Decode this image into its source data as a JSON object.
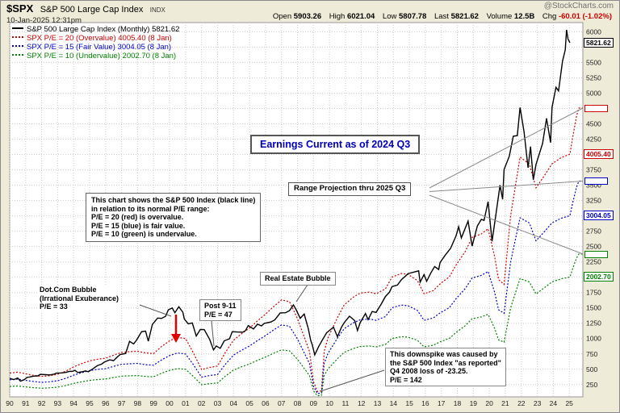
{
  "header": {
    "symbol": "$SPX",
    "name": "S&P 500 Large Cap Index",
    "exchange": "INDX",
    "datetime": "10-Jan-2025 12:31pm",
    "source": "@StockCharts.com",
    "quote": {
      "open_label": "Open",
      "open_value": "5903.26",
      "high_label": "High",
      "high_value": "6021.04",
      "low_label": "Low",
      "low_value": "5807.78",
      "last_label": "Last",
      "last_value": "5821.62",
      "volume_label": "Volume",
      "volume_value": "12.5B",
      "chg_label": "Chg",
      "chg_value": "-60.01 (-1.02%)"
    }
  },
  "legend": [
    {
      "label": "S&P 500 Large Cap Index (Monthly) 5821.62",
      "color": "#000000",
      "style": "solid"
    },
    {
      "label": "SPX P/E = 20 (Overvalue) 4005.40 (8 Jan)",
      "color": "#CC0000",
      "style": "dotted"
    },
    {
      "label": "SPX P/E = 15 (Fair Value) 3004.05 (8 Jan)",
      "color": "#0000CC",
      "style": "dotted"
    },
    {
      "label": "SPX P/E = 10 (Undervalue) 2002.70 (8 Jan)",
      "color": "#008000",
      "style": "dotted"
    }
  ],
  "annotations": {
    "earnings_note": "Earnings Current as of 2024 Q3",
    "range_projection": "Range Projection thru 2025 Q3",
    "explanation": "This chart shows the S&P 500 Index (black line)\nin relation to its normal P/E range:\nP/E = 20 (red) is overvalue.\nP/E = 15 (blue) is fair value.\nP/E = 10 (green) is undervalue.",
    "dotcom": "Dot.Com Bubble\n(Irrational Exuberance)\nP/E = 33",
    "post911": "Post 9-11\nP/E = 47",
    "real_estate": "Real Estate Bubble",
    "downspike": "This downspike was caused by\nthe S&P 500 Index \"as reported\"\nQ4 2008 loss of -23.25.\nP/E = 142"
  },
  "chart_data": {
    "type": "line",
    "title": "S&P 500 Large Cap Index (Monthly) with P/E valuation lines",
    "x_axis": {
      "start_year": 1990,
      "end_year": 2025.85,
      "tick_labels": [
        "90",
        "91",
        "92",
        "93",
        "94",
        "95",
        "96",
        "97",
        "98",
        "99",
        "00",
        "01",
        "02",
        "03",
        "04",
        "05",
        "06",
        "07",
        "08",
        "09",
        "10",
        "11",
        "12",
        "13",
        "14",
        "15",
        "16",
        "17",
        "18",
        "19",
        "20",
        "21",
        "22",
        "23",
        "24",
        "25"
      ]
    },
    "y_axis": {
      "min": 50,
      "max": 6150,
      "tick_min": 250,
      "tick_max": 6000,
      "tick_step": 250,
      "hidden_ticks": [
        2000,
        3000,
        4000,
        4750,
        5750
      ],
      "grid": true
    },
    "series": [
      {
        "name": "S&P 500 Large Cap Index (Monthly)",
        "color": "#000000",
        "style": "solid",
        "last_value": 5821.62,
        "points": [
          [
            1990.0,
            353
          ],
          [
            1990.25,
            331
          ],
          [
            1990.5,
            358
          ],
          [
            1990.67,
            306
          ],
          [
            1990.92,
            330
          ],
          [
            1991.08,
            367
          ],
          [
            1991.25,
            375
          ],
          [
            1991.5,
            388
          ],
          [
            1991.75,
            392
          ],
          [
            1991.92,
            417
          ],
          [
            1992.25,
            412
          ],
          [
            1992.5,
            408
          ],
          [
            1992.75,
            418
          ],
          [
            1992.92,
            436
          ],
          [
            1993.25,
            440
          ],
          [
            1993.5,
            448
          ],
          [
            1993.75,
            467
          ],
          [
            1993.92,
            466
          ],
          [
            1994.08,
            482
          ],
          [
            1994.25,
            447
          ],
          [
            1994.5,
            458
          ],
          [
            1994.75,
            472
          ],
          [
            1994.92,
            459
          ],
          [
            1995.25,
            515
          ],
          [
            1995.5,
            562
          ],
          [
            1995.75,
            584
          ],
          [
            1995.92,
            616
          ],
          [
            1996.25,
            654
          ],
          [
            1996.5,
            640
          ],
          [
            1996.75,
            705
          ],
          [
            1996.92,
            741
          ],
          [
            1997.25,
            757
          ],
          [
            1997.5,
            954
          ],
          [
            1997.75,
            914
          ],
          [
            1997.92,
            970
          ],
          [
            1998.25,
            1112
          ],
          [
            1998.5,
            1121
          ],
          [
            1998.67,
            957
          ],
          [
            1998.92,
            1229
          ],
          [
            1999.25,
            1335
          ],
          [
            1999.5,
            1329
          ],
          [
            1999.75,
            1363
          ],
          [
            1999.92,
            1469
          ],
          [
            2000.17,
            1499
          ],
          [
            2000.33,
            1421
          ],
          [
            2000.58,
            1518
          ],
          [
            2000.83,
            1429
          ],
          [
            2000.92,
            1320
          ],
          [
            2001.17,
            1240
          ],
          [
            2001.42,
            1255
          ],
          [
            2001.67,
            1041
          ],
          [
            2001.92,
            1148
          ],
          [
            2002.17,
            1147
          ],
          [
            2002.5,
            990
          ],
          [
            2002.75,
            815
          ],
          [
            2002.92,
            880
          ],
          [
            2003.17,
            841
          ],
          [
            2003.42,
            964
          ],
          [
            2003.75,
            996
          ],
          [
            2003.92,
            1112
          ],
          [
            2004.25,
            1107
          ],
          [
            2004.58,
            1105
          ],
          [
            2004.75,
            1130
          ],
          [
            2004.92,
            1212
          ],
          [
            2005.25,
            1157
          ],
          [
            2005.5,
            1234
          ],
          [
            2005.75,
            1207
          ],
          [
            2005.92,
            1248
          ],
          [
            2006.33,
            1270
          ],
          [
            2006.58,
            1304
          ],
          [
            2006.92,
            1418
          ],
          [
            2007.25,
            1421
          ],
          [
            2007.5,
            1455
          ],
          [
            2007.75,
            1549
          ],
          [
            2007.92,
            1468
          ],
          [
            2008.17,
            1331
          ],
          [
            2008.42,
            1400
          ],
          [
            2008.67,
            1166
          ],
          [
            2008.83,
            969
          ],
          [
            2008.92,
            903
          ],
          [
            2009.08,
            735
          ],
          [
            2009.33,
            873
          ],
          [
            2009.58,
            987
          ],
          [
            2009.83,
            1096
          ],
          [
            2009.92,
            1115
          ],
          [
            2010.25,
            1187
          ],
          [
            2010.5,
            1031
          ],
          [
            2010.75,
            1183
          ],
          [
            2010.92,
            1258
          ],
          [
            2011.25,
            1364
          ],
          [
            2011.58,
            1292
          ],
          [
            2011.75,
            1131
          ],
          [
            2011.92,
            1258
          ],
          [
            2012.25,
            1408
          ],
          [
            2012.42,
            1310
          ],
          [
            2012.67,
            1441
          ],
          [
            2012.92,
            1426
          ],
          [
            2013.25,
            1569
          ],
          [
            2013.5,
            1686
          ],
          [
            2013.75,
            1757
          ],
          [
            2013.92,
            1848
          ],
          [
            2014.25,
            1872
          ],
          [
            2014.5,
            1960
          ],
          [
            2014.75,
            2018
          ],
          [
            2014.92,
            2059
          ],
          [
            2015.33,
            2086
          ],
          [
            2015.58,
            2104
          ],
          [
            2015.67,
            1920
          ],
          [
            2015.92,
            2044
          ],
          [
            2016.08,
            1932
          ],
          [
            2016.33,
            2065
          ],
          [
            2016.58,
            2174
          ],
          [
            2016.83,
            2126
          ],
          [
            2016.92,
            2239
          ],
          [
            2017.25,
            2363
          ],
          [
            2017.58,
            2471
          ],
          [
            2017.92,
            2674
          ],
          [
            2018.08,
            2824
          ],
          [
            2018.25,
            2641
          ],
          [
            2018.67,
            2914
          ],
          [
            2018.92,
            2507
          ],
          [
            2019.25,
            2834
          ],
          [
            2019.5,
            2942
          ],
          [
            2019.67,
            2926
          ],
          [
            2019.92,
            3231
          ],
          [
            2020.17,
            2585
          ],
          [
            2020.42,
            3044
          ],
          [
            2020.67,
            3500
          ],
          [
            2020.83,
            3270
          ],
          [
            2020.92,
            3756
          ],
          [
            2021.25,
            3973
          ],
          [
            2021.5,
            4298
          ],
          [
            2021.75,
            4308
          ],
          [
            2021.92,
            4766
          ],
          [
            2022.17,
            4374
          ],
          [
            2022.42,
            3785
          ],
          [
            2022.58,
            4130
          ],
          [
            2022.75,
            3586
          ],
          [
            2022.92,
            3840
          ],
          [
            2023.08,
            3970
          ],
          [
            2023.33,
            4180
          ],
          [
            2023.58,
            4589
          ],
          [
            2023.83,
            4194
          ],
          [
            2023.92,
            4770
          ],
          [
            2024.17,
            5096
          ],
          [
            2024.33,
            5035
          ],
          [
            2024.58,
            5522
          ],
          [
            2024.75,
            5705
          ],
          [
            2024.83,
            6032
          ],
          [
            2024.92,
            5882
          ],
          [
            2025.04,
            5821.62
          ]
        ]
      },
      {
        "name": "SPX P/E = 20 (Overvalue)",
        "color": "#CC0000",
        "style": "dotted",
        "pe_multiple": 20,
        "last_value": 4005.4
      },
      {
        "name": "SPX P/E = 15 (Fair Value)",
        "color": "#0000CC",
        "style": "dotted",
        "pe_multiple": 15,
        "last_value": 3004.05
      },
      {
        "name": "SPX P/E = 10 (Undervalue)",
        "color": "#008000",
        "style": "dotted",
        "pe_multiple": 10,
        "last_value": 2002.7
      }
    ],
    "earnings_points": [
      [
        1990.0,
        21.9
      ],
      [
        1990.5,
        22.6
      ],
      [
        1991.0,
        21.3
      ],
      [
        1991.5,
        20.0
      ],
      [
        1992.0,
        19.1
      ],
      [
        1992.5,
        19.7
      ],
      [
        1993.0,
        20.9
      ],
      [
        1993.5,
        23.4
      ],
      [
        1994.0,
        26.9
      ],
      [
        1994.5,
        29.6
      ],
      [
        1995.0,
        31.8
      ],
      [
        1995.5,
        33.2
      ],
      [
        1996.0,
        34.0
      ],
      [
        1996.5,
        36.5
      ],
      [
        1997.0,
        38.7
      ],
      [
        1997.5,
        39.3
      ],
      [
        1998.0,
        39.7
      ],
      [
        1998.5,
        38.3
      ],
      [
        1999.0,
        37.7
      ],
      [
        1999.5,
        43.5
      ],
      [
        2000.0,
        48.2
      ],
      [
        2000.5,
        51.0
      ],
      [
        2001.0,
        50.0
      ],
      [
        2001.5,
        38.0
      ],
      [
        2002.0,
        24.7
      ],
      [
        2002.5,
        26.5
      ],
      [
        2003.0,
        27.6
      ],
      [
        2003.5,
        39.0
      ],
      [
        2004.0,
        48.7
      ],
      [
        2004.5,
        54.0
      ],
      [
        2005.0,
        58.6
      ],
      [
        2005.5,
        64.5
      ],
      [
        2006.0,
        69.9
      ],
      [
        2006.5,
        76.0
      ],
      [
        2007.0,
        81.5
      ],
      [
        2007.5,
        80.0
      ],
      [
        2008.0,
        66.2
      ],
      [
        2008.42,
        51.4
      ],
      [
        2008.75,
        39.7
      ],
      [
        2009.0,
        14.9
      ],
      [
        2009.25,
        6.9
      ],
      [
        2009.5,
        7.5
      ],
      [
        2009.67,
        39.6
      ],
      [
        2009.92,
        51.0
      ],
      [
        2010.5,
        67.1
      ],
      [
        2010.92,
        77.4
      ],
      [
        2011.5,
        83.9
      ],
      [
        2011.92,
        87.0
      ],
      [
        2012.5,
        87.9
      ],
      [
        2012.92,
        86.5
      ],
      [
        2013.5,
        90.5
      ],
      [
        2013.92,
        100.2
      ],
      [
        2014.5,
        103.1
      ],
      [
        2014.92,
        102.3
      ],
      [
        2015.5,
        97.3
      ],
      [
        2015.92,
        86.5
      ],
      [
        2016.5,
        89.1
      ],
      [
        2016.92,
        94.6
      ],
      [
        2017.5,
        100.3
      ],
      [
        2017.92,
        109.9
      ],
      [
        2018.5,
        121.1
      ],
      [
        2018.92,
        132.4
      ],
      [
        2019.5,
        135.3
      ],
      [
        2019.92,
        139.5
      ],
      [
        2020.33,
        116.9
      ],
      [
        2020.58,
        98.0
      ],
      [
        2020.92,
        94.1
      ],
      [
        2021.33,
        150.0
      ],
      [
        2021.92,
        197.9
      ],
      [
        2022.5,
        192.3
      ],
      [
        2022.92,
        172.8
      ],
      [
        2023.5,
        184.0
      ],
      [
        2023.92,
        192.4
      ],
      [
        2024.5,
        197.5
      ],
      [
        2025.04,
        200.27
      ]
    ],
    "earnings_projection": [
      [
        2025.2,
        213
      ],
      [
        2025.45,
        231
      ],
      [
        2025.6,
        237.8
      ],
      [
        2025.85,
        237.8
      ]
    ],
    "price_markers": [
      {
        "value": 5821.62,
        "label": "5821.62",
        "color": "#000000"
      },
      {
        "value": 4005.4,
        "label": "4005.40",
        "color": "#CC0000"
      },
      {
        "value": 3004.05,
        "label": "3004.05",
        "color": "#0000CC"
      },
      {
        "value": 2002.7,
        "label": "2002.70",
        "color": "#008000"
      }
    ],
    "projection_boxes": [
      {
        "value": 4756,
        "color": "#CC0000"
      },
      {
        "value": 3567,
        "color": "#0000CC"
      },
      {
        "value": 2378,
        "color": "#008000"
      }
    ]
  }
}
